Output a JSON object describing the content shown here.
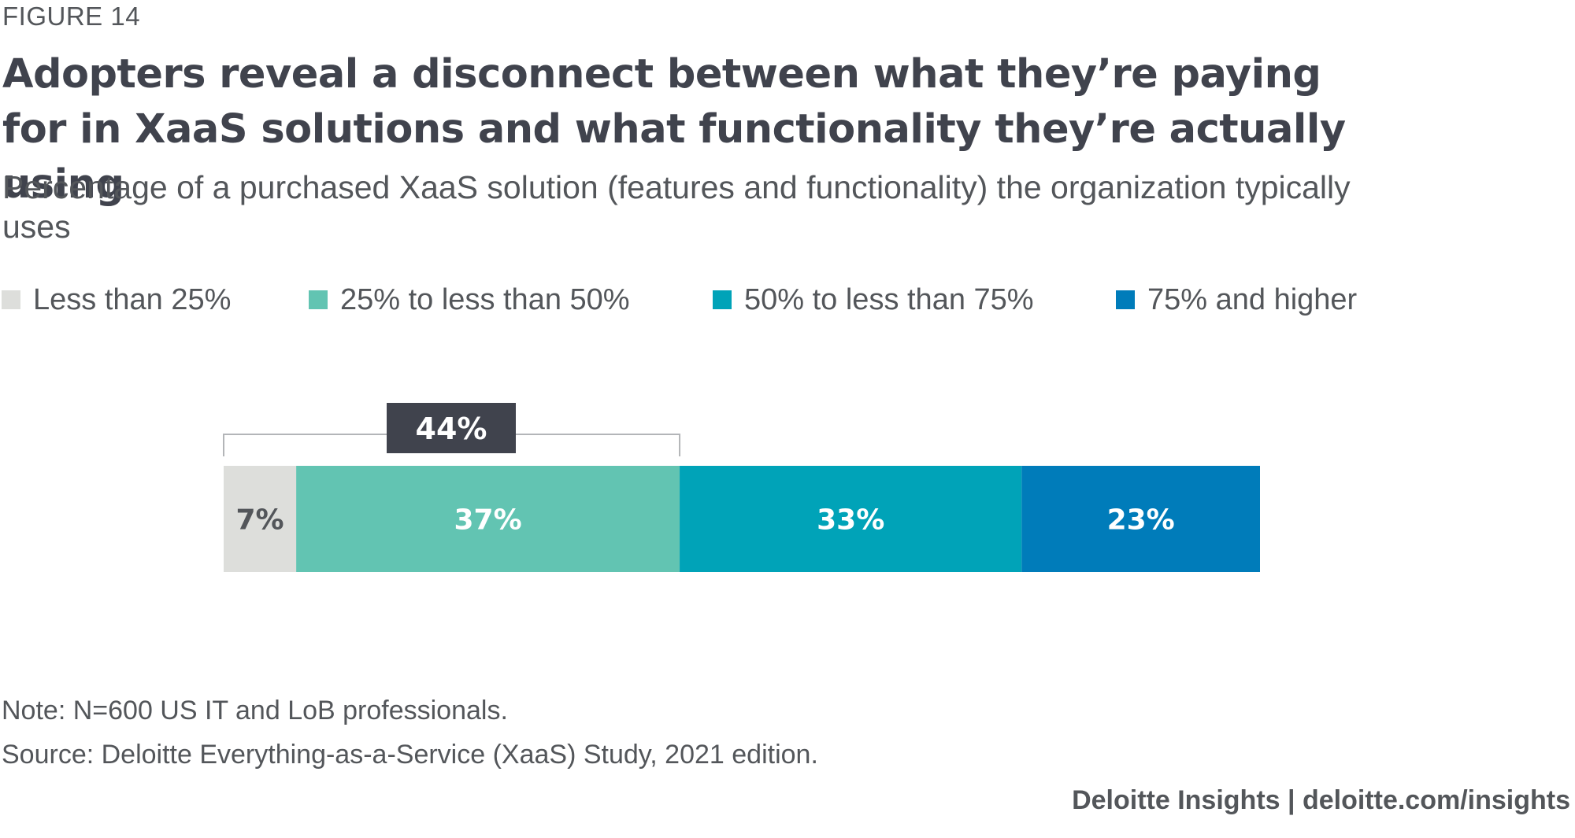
{
  "figure_label": "FIGURE 14",
  "title": "Adopters reveal a disconnect between what they’re paying for in XaaS solutions and what functionality they’re actually using",
  "subtitle": "Percentage of a purchased XaaS solution (features and functionality) the organization typically uses",
  "chart_data": {
    "type": "bar",
    "orientation": "horizontal",
    "stacked": true,
    "xlim": [
      0,
      100
    ],
    "series": [
      {
        "name": "Less than 25%",
        "value": 7,
        "label": "7%",
        "color": "#dddedb",
        "label_color": "#53565a"
      },
      {
        "name": "25% to less than 50%",
        "value": 37,
        "label": "37%",
        "color": "#62c4b2",
        "label_color": "#ffffff"
      },
      {
        "name": "50% to less than 75%",
        "value": 33,
        "label": "33%",
        "color": "#00a3b8",
        "label_color": "#ffffff"
      },
      {
        "name": "75% and higher",
        "value": 23,
        "label": "23%",
        "color": "#007cba",
        "label_color": "#ffffff"
      }
    ],
    "bracket": {
      "label": "44%",
      "series_span": [
        0,
        1
      ],
      "color": "#40434d"
    },
    "legend_position": "top"
  },
  "note": "Note: N=600 US IT and LoB professionals.",
  "source": "Source: Deloitte Everything-as-a-Service (XaaS) Study, 2021 edition.",
  "footer": "Deloitte Insights | deloitte.com/insights"
}
